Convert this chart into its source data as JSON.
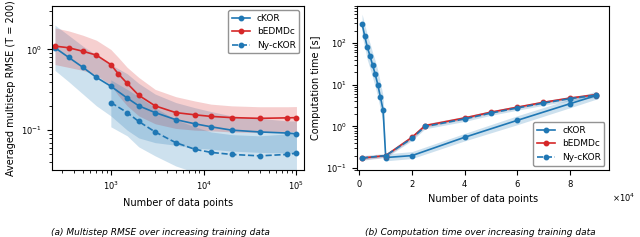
{
  "left": {
    "xlabel": "Number of data points",
    "ylabel": "Averaged multistep RMSE (T = 200)",
    "xlim_log": [
      230,
      120000
    ],
    "ylim_log": [
      0.032,
      3.5
    ],
    "cKOR": {
      "x": [
        250,
        350,
        500,
        700,
        1000,
        1500,
        2000,
        3000,
        5000,
        8000,
        12000,
        20000,
        40000,
        80000,
        100000
      ],
      "y": [
        1.05,
        0.8,
        0.6,
        0.45,
        0.35,
        0.25,
        0.2,
        0.165,
        0.135,
        0.12,
        0.11,
        0.1,
        0.095,
        0.092,
        0.09
      ],
      "y_lo": [
        0.55,
        0.4,
        0.28,
        0.2,
        0.15,
        0.1,
        0.08,
        0.07,
        0.065,
        0.06,
        0.058,
        0.055,
        0.053,
        0.052,
        0.05
      ],
      "y_hi": [
        2.0,
        1.5,
        1.1,
        0.85,
        0.65,
        0.5,
        0.38,
        0.28,
        0.22,
        0.19,
        0.17,
        0.15,
        0.14,
        0.13,
        0.13
      ],
      "color": "#1f77b4",
      "linestyle": "-",
      "marker": "o"
    },
    "bEDMDc": {
      "x": [
        250,
        350,
        500,
        700,
        1000,
        1200,
        1500,
        2000,
        3000,
        5000,
        8000,
        12000,
        20000,
        40000,
        80000,
        100000
      ],
      "y": [
        1.1,
        1.05,
        0.95,
        0.85,
        0.65,
        0.5,
        0.38,
        0.27,
        0.2,
        0.165,
        0.155,
        0.148,
        0.143,
        0.14,
        0.142,
        0.143
      ],
      "y_lo": [
        0.65,
        0.6,
        0.55,
        0.48,
        0.36,
        0.27,
        0.2,
        0.15,
        0.12,
        0.105,
        0.1,
        0.098,
        0.095,
        0.093,
        0.095,
        0.096
      ],
      "y_hi": [
        1.85,
        1.7,
        1.5,
        1.3,
        1.0,
        0.8,
        0.6,
        0.45,
        0.32,
        0.26,
        0.23,
        0.21,
        0.2,
        0.195,
        0.195,
        0.196
      ],
      "color": "#d62728",
      "linestyle": "-",
      "marker": "o"
    },
    "NycKOR": {
      "x": [
        1000,
        1500,
        2000,
        3000,
        5000,
        8000,
        12000,
        20000,
        40000,
        80000,
        100000
      ],
      "y": [
        0.22,
        0.165,
        0.128,
        0.095,
        0.07,
        0.058,
        0.053,
        0.05,
        0.048,
        0.05,
        0.052
      ],
      "y_lo": [
        0.11,
        0.085,
        0.062,
        0.048,
        0.036,
        0.03,
        0.028,
        0.026,
        0.025,
        0.027,
        0.028
      ],
      "y_hi": [
        0.42,
        0.32,
        0.26,
        0.19,
        0.135,
        0.11,
        0.095,
        0.088,
        0.085,
        0.09,
        0.095
      ],
      "color": "#1f77b4",
      "linestyle": "--",
      "marker": "o"
    }
  },
  "right": {
    "xlabel": "Number of data points",
    "ylabel": "Computation time [s]",
    "xlim": [
      -1000,
      95000
    ],
    "ylim_log": [
      0.09,
      800
    ],
    "xticks": [
      0,
      20000,
      40000,
      60000,
      80000
    ],
    "cKOR": {
      "x": [
        1000,
        2000,
        3000,
        4000,
        5000,
        6000,
        7000,
        8000,
        9000,
        10000,
        20000,
        40000,
        60000,
        80000,
        90000
      ],
      "y": [
        290,
        150,
        80,
        50,
        30,
        18,
        10,
        5,
        2.5,
        0.18,
        0.2,
        0.55,
        1.4,
        3.5,
        5.5
      ],
      "y_lo": [
        150,
        80,
        40,
        25,
        15,
        9,
        5,
        2.5,
        1.2,
        0.15,
        0.17,
        0.45,
        1.1,
        2.8,
        4.5
      ],
      "y_hi": [
        500,
        280,
        160,
        100,
        60,
        38,
        22,
        11,
        5.5,
        0.22,
        0.25,
        0.68,
        1.8,
        4.5,
        7.0
      ],
      "color": "#1f77b4",
      "linestyle": "-",
      "marker": "o"
    },
    "bEDMDc": {
      "x": [
        1000,
        10000,
        20000,
        25000,
        40000,
        50000,
        60000,
        70000,
        80000,
        90000
      ],
      "y": [
        0.175,
        0.2,
        0.55,
        1.05,
        1.6,
        2.2,
        2.9,
        3.8,
        4.8,
        5.8
      ],
      "y_lo": [
        0.16,
        0.185,
        0.5,
        0.96,
        1.48,
        2.05,
        2.7,
        3.55,
        4.55,
        5.5
      ],
      "y_hi": [
        0.192,
        0.218,
        0.61,
        1.16,
        1.75,
        2.38,
        3.12,
        4.08,
        5.1,
        6.15
      ],
      "color": "#d62728",
      "linestyle": "-",
      "marker": "o"
    },
    "NycKOR": {
      "x": [
        1000,
        10000,
        20000,
        25000,
        40000,
        50000,
        60000,
        70000,
        80000,
        90000
      ],
      "y": [
        0.175,
        0.2,
        0.52,
        1.0,
        1.52,
        2.1,
        2.78,
        3.65,
        4.65,
        5.65
      ],
      "y_lo": [
        0.155,
        0.18,
        0.46,
        0.88,
        1.32,
        1.85,
        2.45,
        3.22,
        4.1,
        5.0
      ],
      "y_hi": [
        0.2,
        0.225,
        0.6,
        1.15,
        1.75,
        2.4,
        3.15,
        4.12,
        5.22,
        6.35
      ],
      "color": "#1f77b4",
      "linestyle": "--",
      "marker": "o"
    }
  },
  "caption_left": "(a) Multistep RMSE over increasing training data",
  "caption_right": "(b) Computation time over increasing training data"
}
